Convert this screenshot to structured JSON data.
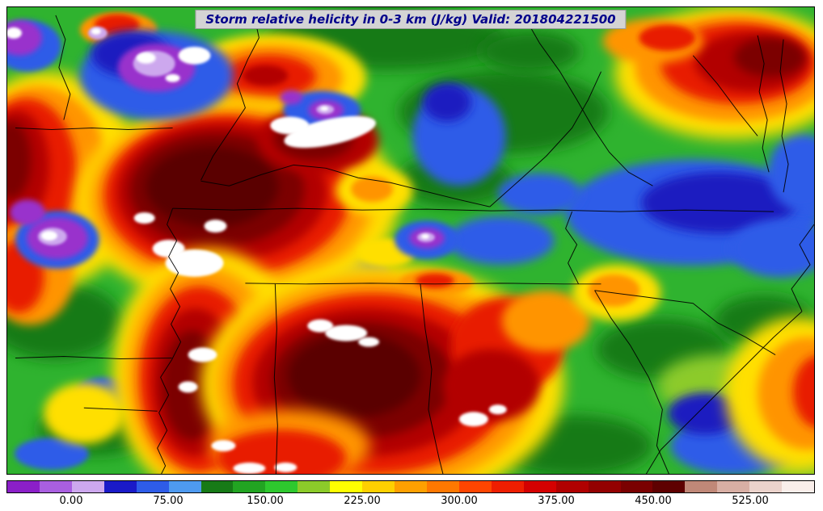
{
  "title": "Storm relative helicity in 0-3 km (J/kg) Valid: 201804221500",
  "colorbar": {
    "min": -50,
    "max": 575,
    "ticks": [
      {
        "value": 0,
        "label": "0.00"
      },
      {
        "value": 75,
        "label": "75.00"
      },
      {
        "value": 150,
        "label": "150.00"
      },
      {
        "value": 225,
        "label": "225.00"
      },
      {
        "value": 300,
        "label": "300.00"
      },
      {
        "value": 375,
        "label": "375.00"
      },
      {
        "value": 450,
        "label": "450.00"
      },
      {
        "value": 525,
        "label": "525.00"
      }
    ],
    "colors": [
      "#8B1FC8",
      "#A95FE0",
      "#CDA8EE",
      "#1A1AC8",
      "#2E5CE8",
      "#4E9AF0",
      "#177A17",
      "#22A422",
      "#2EC82E",
      "#8CCB2A",
      "#FFFF00",
      "#FFD000",
      "#FFA000",
      "#FF7800",
      "#FF4500",
      "#EE1E00",
      "#D40000",
      "#B00000",
      "#930000",
      "#7A0000",
      "#5E0000",
      "#C08878",
      "#D8AFA4",
      "#EBD3CC",
      "#F9EEEA"
    ]
  },
  "map": {
    "base_color": "#2FB32F",
    "border_color": "#000000",
    "borders": [
      [
        205,
        250,
        280,
        252,
        360,
        250,
        440,
        252,
        520,
        251,
        600,
        253,
        680,
        252,
        760,
        254,
        840,
        252,
        950,
        254
      ],
      [
        295,
        343,
        370,
        344,
        450,
        343,
        530,
        344,
        610,
        343,
        690,
        344,
        736,
        344
      ],
      [
        205,
        250,
        198,
        270,
        210,
        290,
        200,
        310,
        212,
        330,
        202,
        350,
        214,
        372,
        203,
        394,
        215,
        416,
        204,
        438,
        190,
        460,
        200,
        482,
        188,
        504,
        198,
        526,
        186,
        548,
        196,
        570,
        191,
        580
      ],
      [
        95,
        498,
        140,
        500,
        186,
        502
      ],
      [
        10,
        436,
        70,
        434,
        140,
        437,
        204,
        436
      ],
      [
        332,
        344,
        334,
        400,
        331,
        460,
        335,
        520,
        333,
        580
      ],
      [
        512,
        344,
        518,
        400,
        526,
        450,
        522,
        500,
        535,
        560,
        540,
        580
      ],
      [
        728,
        352,
        748,
        386,
        772,
        420,
        795,
        460,
        812,
        500,
        805,
        545,
        820,
        580
      ],
      [
        728,
        352,
        790,
        360,
        850,
        368,
        880,
        392,
        915,
        410,
        952,
        432
      ],
      [
        240,
        215,
        255,
        185,
        275,
        155,
        295,
        125,
        285,
        95,
        298,
        65,
        312,
        38,
        306,
        10
      ],
      [
        240,
        216,
        275,
        222,
        315,
        208,
        355,
        196,
        395,
        200,
        435,
        212,
        475,
        218,
        515,
        228,
        555,
        238,
        598,
        248
      ],
      [
        598,
        248,
        635,
        215,
        668,
        185,
        700,
        150,
        720,
        115,
        736,
        80
      ],
      [
        640,
        10,
        660,
        45,
        685,
        80,
        706,
        115,
        726,
        150,
        746,
        180,
        770,
        205,
        800,
        222
      ],
      [
        930,
        35,
        938,
        70,
        932,
        105,
        942,
        140,
        936,
        175,
        944,
        205
      ],
      [
        962,
        40,
        958,
        80,
        966,
        120,
        960,
        160,
        968,
        195,
        962,
        230
      ],
      [
        850,
        60,
        880,
        95,
        906,
        130,
        930,
        160
      ],
      [
        985,
        378,
        950,
        410,
        915,
        445,
        880,
        480,
        845,
        515,
        810,
        550,
        792,
        580
      ],
      [
        1000,
        270,
        982,
        295,
        995,
        320,
        972,
        350,
        985,
        378
      ],
      [
        60,
        10,
        72,
        40,
        64,
        75,
        78,
        108,
        70,
        140
      ],
      [
        700,
        254,
        692,
        275,
        706,
        295,
        695,
        318,
        708,
        344
      ],
      [
        10,
        150,
        55,
        152,
        105,
        150,
        150,
        152,
        205,
        150
      ]
    ]
  },
  "field": {
    "blobs": [
      [
        470,
        40,
        150,
        38,
        "#177A17",
        "b8"
      ],
      [
        615,
        130,
        130,
        52,
        "#177A17",
        "b8"
      ],
      [
        555,
        215,
        72,
        32,
        "#177A17",
        "b8"
      ],
      [
        60,
        390,
        82,
        48,
        "#177A17",
        "b8"
      ],
      [
        110,
        525,
        72,
        32,
        "#177A17",
        "b8"
      ],
      [
        700,
        545,
        100,
        38,
        "#177A17",
        "b8"
      ],
      [
        812,
        425,
        82,
        38,
        "#177A17",
        "b8"
      ],
      [
        938,
        390,
        62,
        32,
        "#177A17",
        "b8"
      ],
      [
        648,
        55,
        62,
        26,
        "#177A17",
        "b8"
      ],
      [
        878,
        470,
        72,
        38,
        "#8CCB2A",
        "b8"
      ],
      [
        985,
        560,
        55,
        28,
        "#8CCB2A",
        "b8"
      ],
      [
        560,
        160,
        58,
        62,
        "#2E5CE8",
        "b6"
      ],
      [
        545,
        118,
        30,
        24,
        "#1A1AC0",
        "b6"
      ],
      [
        612,
        290,
        66,
        30,
        "#2E5CE8",
        "b6"
      ],
      [
        850,
        255,
        158,
        66,
        "#2E5CE8",
        "b6"
      ],
      [
        882,
        243,
        96,
        38,
        "#1A1AC0",
        "b6"
      ],
      [
        958,
        300,
        62,
        36,
        "#2E5CE8",
        "b6"
      ],
      [
        900,
        545,
        78,
        36,
        "#2E5CE8",
        "b6"
      ],
      [
        865,
        505,
        46,
        26,
        "#1A1AC0",
        "b6"
      ],
      [
        432,
        330,
        42,
        18,
        "#2E5CE8",
        "b4"
      ],
      [
        120,
        480,
        36,
        20,
        "#2E5CE8",
        "b4"
      ],
      [
        55,
        555,
        46,
        20,
        "#2E5CE8",
        "b4"
      ],
      [
        660,
        232,
        52,
        26,
        "#2E5CE8",
        "b6"
      ],
      [
        985,
        205,
        42,
        48,
        "#2E5CE8",
        "b6"
      ],
      [
        50,
        215,
        115,
        135,
        "#FFDF00",
        "b8"
      ],
      [
        38,
        210,
        88,
        112,
        "#FF9400",
        "b6"
      ],
      [
        24,
        205,
        62,
        92,
        "#E81E00",
        "b6"
      ],
      [
        12,
        198,
        40,
        70,
        "#B20000",
        "b6"
      ],
      [
        5,
        190,
        24,
        48,
        "#7C0000",
        "b6"
      ],
      [
        28,
        330,
        55,
        65,
        "#FF9400",
        "b6"
      ],
      [
        14,
        335,
        32,
        45,
        "#E81E00",
        "b6"
      ],
      [
        138,
        28,
        48,
        22,
        "#FF9400",
        "b4"
      ],
      [
        136,
        22,
        28,
        13,
        "#E81E00",
        "b4"
      ],
      [
        330,
        88,
        115,
        55,
        "#FFDF00",
        "b6"
      ],
      [
        328,
        88,
        88,
        42,
        "#FF9400",
        "b6"
      ],
      [
        325,
        86,
        58,
        27,
        "#E81E00",
        "b6"
      ],
      [
        320,
        85,
        28,
        13,
        "#B20000",
        "b4"
      ],
      [
        285,
        242,
        200,
        128,
        "#FFDF00",
        "b8"
      ],
      [
        278,
        238,
        175,
        114,
        "#FF9400",
        "b8"
      ],
      [
        272,
        234,
        152,
        100,
        "#E81E00",
        "b6"
      ],
      [
        266,
        230,
        130,
        86,
        "#B20000",
        "b6"
      ],
      [
        260,
        227,
        108,
        70,
        "#7C0000",
        "b6"
      ],
      [
        254,
        223,
        82,
        50,
        "#5A0000",
        "b6"
      ],
      [
        385,
        165,
        75,
        42,
        "#B20000",
        "b6"
      ],
      [
        380,
        162,
        50,
        28,
        "#7C0000",
        "b6"
      ],
      [
        250,
        455,
        120,
        155,
        "#FFDF00",
        "b8"
      ],
      [
        244,
        458,
        95,
        135,
        "#FF9400",
        "b8"
      ],
      [
        238,
        462,
        74,
        115,
        "#E81E00",
        "b6"
      ],
      [
        233,
        466,
        54,
        92,
        "#B20000",
        "b6"
      ],
      [
        229,
        470,
        37,
        68,
        "#7C0000",
        "b6"
      ],
      [
        465,
        468,
        225,
        150,
        "#FFDF00",
        "b8"
      ],
      [
        458,
        468,
        198,
        132,
        "#FF9400",
        "b8"
      ],
      [
        452,
        468,
        172,
        112,
        "#E81E00",
        "b6"
      ],
      [
        446,
        466,
        142,
        92,
        "#B20000",
        "b6"
      ],
      [
        440,
        463,
        112,
        72,
        "#7C0000",
        "b6"
      ],
      [
        430,
        458,
        82,
        52,
        "#5A0000",
        "b6"
      ],
      [
        350,
        545,
        100,
        45,
        "#FF9400",
        "b8"
      ],
      [
        340,
        560,
        80,
        35,
        "#E81E00",
        "b6"
      ],
      [
        620,
        420,
        70,
        60,
        "#E81E00",
        "b6"
      ],
      [
        668,
        390,
        55,
        38,
        "#FF9400",
        "b6"
      ],
      [
        600,
        470,
        60,
        45,
        "#B20000",
        "b6"
      ],
      [
        898,
        82,
        145,
        82,
        "#FFDF00",
        "b8"
      ],
      [
        900,
        76,
        122,
        66,
        "#FF9400",
        "b6"
      ],
      [
        906,
        70,
        96,
        50,
        "#E81E00",
        "b6"
      ],
      [
        922,
        68,
        70,
        37,
        "#B20000",
        "b6"
      ],
      [
        945,
        62,
        44,
        24,
        "#7C0000",
        "b6"
      ],
      [
        800,
        42,
        62,
        28,
        "#FF9400",
        "b6"
      ],
      [
        818,
        38,
        35,
        16,
        "#E81E00",
        "b4"
      ],
      [
        980,
        480,
        90,
        95,
        "#FFDF00",
        "b8"
      ],
      [
        992,
        480,
        62,
        70,
        "#FF9400",
        "b6"
      ],
      [
        1006,
        478,
        32,
        45,
        "#E81E00",
        "b6"
      ],
      [
        455,
        228,
        48,
        30,
        "#FFDF00",
        "b6"
      ],
      [
        452,
        226,
        26,
        16,
        "#FF9400",
        "b4"
      ],
      [
        532,
        342,
        46,
        16,
        "#FF9400",
        "b4"
      ],
      [
        530,
        340,
        24,
        9,
        "#E81E00",
        "b4"
      ],
      [
        95,
        505,
        50,
        38,
        "#FFDF00",
        "b6"
      ],
      [
        755,
        355,
        55,
        35,
        "#FFDF00",
        "b6"
      ],
      [
        752,
        352,
        32,
        20,
        "#FF9400",
        "b4"
      ],
      [
        470,
        305,
        36,
        18,
        "#FFDF00",
        "b4"
      ],
      [
        185,
        85,
        95,
        55,
        "#2E5CE8",
        "b6"
      ],
      [
        152,
        58,
        48,
        28,
        "#1A1AC0",
        "b6"
      ],
      [
        390,
        128,
        48,
        24,
        "#2E5CE8",
        "b4"
      ],
      [
        520,
        289,
        40,
        24,
        "#2E5CE8",
        "b4"
      ],
      [
        62,
        289,
        52,
        36,
        "#2E5CE8",
        "b4"
      ],
      [
        25,
        48,
        42,
        32,
        "#2E5CE8",
        "b4"
      ],
      [
        185,
        75,
        48,
        30,
        "#9932CC",
        "b4"
      ],
      [
        182,
        70,
        26,
        16,
        "#CDA8EE",
        "b2"
      ],
      [
        172,
        63,
        12,
        7,
        "#FFFFFF",
        "b2"
      ],
      [
        232,
        60,
        20,
        11,
        "#FFFFFF",
        "b2"
      ],
      [
        205,
        88,
        9,
        5,
        "#FFFFFF",
        "b2"
      ],
      [
        395,
        128,
        22,
        13,
        "#9932CC",
        "b4"
      ],
      [
        394,
        127,
        11,
        6,
        "#CDA8EE",
        "b2"
      ],
      [
        393,
        126,
        5,
        3,
        "#FFFFFF",
        "b2"
      ],
      [
        352,
        112,
        14,
        9,
        "#9932CC",
        "b4"
      ],
      [
        520,
        287,
        22,
        13,
        "#9932CC",
        "b4"
      ],
      [
        519,
        286,
        11,
        6,
        "#CDA8EE",
        "b2"
      ],
      [
        518,
        285,
        5,
        3,
        "#FFFFFF",
        "b2"
      ],
      [
        62,
        287,
        38,
        26,
        "#9932CC",
        "b4"
      ],
      [
        56,
        285,
        18,
        11,
        "#CDA8EE",
        "b2"
      ],
      [
        52,
        284,
        10,
        6,
        "#FFFFFF",
        "b2"
      ],
      [
        25,
        255,
        22,
        16,
        "#9932CC",
        "b4"
      ],
      [
        15,
        38,
        28,
        22,
        "#9932CC",
        "b4"
      ],
      [
        8,
        32,
        10,
        7,
        "#FFFFFF",
        "b2"
      ],
      [
        112,
        32,
        12,
        8,
        "#CDA8EE",
        "b2"
      ],
      [
        110,
        30,
        6,
        4,
        "#FFFFFF",
        "b2"
      ],
      [
        400,
        155,
        58,
        16,
        "#FFFFFF",
        "b2",
        -12
      ],
      [
        350,
        147,
        24,
        11,
        "#FFFFFF",
        "b2"
      ],
      [
        232,
        318,
        36,
        17,
        "#FFFFFF",
        "b2"
      ],
      [
        200,
        300,
        20,
        11,
        "#FFFFFF",
        "b2"
      ],
      [
        258,
        272,
        14,
        8,
        "#FFFFFF",
        "b2"
      ],
      [
        170,
        262,
        13,
        7,
        "#FFFFFF",
        "b2"
      ],
      [
        242,
        432,
        18,
        9,
        "#FFFFFF",
        "b2"
      ],
      [
        224,
        472,
        12,
        7,
        "#FFFFFF",
        "b2"
      ],
      [
        268,
        545,
        15,
        7,
        "#FFFFFF",
        "b2"
      ],
      [
        300,
        573,
        20,
        7,
        "#FFFFFF",
        "b2"
      ],
      [
        345,
        572,
        14,
        6,
        "#FFFFFF",
        "b2"
      ],
      [
        420,
        405,
        26,
        10,
        "#FFFFFF",
        "b2"
      ],
      [
        388,
        396,
        16,
        8,
        "#FFFFFF",
        "b2"
      ],
      [
        448,
        416,
        13,
        6,
        "#FFFFFF",
        "b2"
      ],
      [
        578,
        512,
        18,
        9,
        "#FFFFFF",
        "b2"
      ],
      [
        608,
        500,
        11,
        6,
        "#FFFFFF",
        "b2"
      ]
    ]
  }
}
